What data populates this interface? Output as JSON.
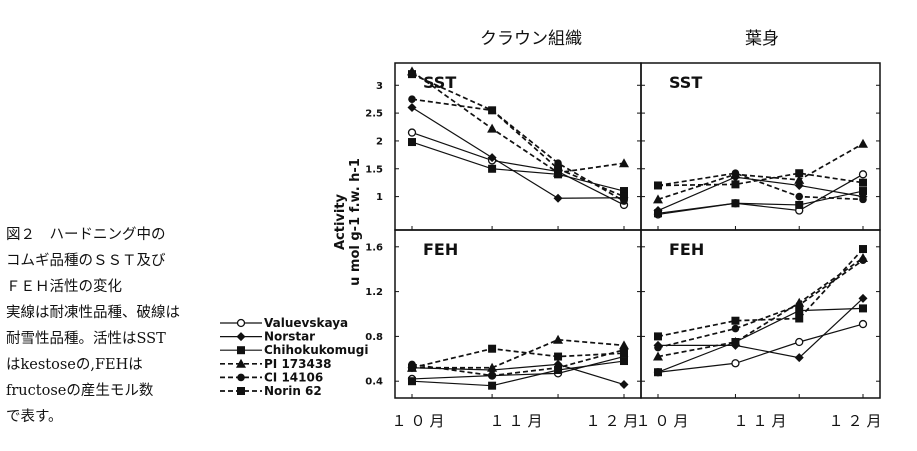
{
  "caption": {
    "lines": [
      "図２　ハードニング中の",
      "コムギ品種のＳＳＴ及び",
      "ＦＥＨ活性の変化",
      "実線は耐凍性品種、破線は",
      "耐雪性品種。活性はSST",
      "はkestoseの,FEHは",
      "fructoseの産生モル数",
      "で表す。"
    ]
  },
  "chart_data": {
    "type": "line",
    "column_titles": [
      "クラウン組織",
      "葉身"
    ],
    "ylabel": [
      "Activity",
      "u mol g-1 f.w. h-1"
    ],
    "x": [
      "10月",
      "11月",
      "12月"
    ],
    "x_tick_labels": [
      "１０月",
      "１１月",
      "１２月"
    ],
    "x_points": [
      0,
      0.85,
      1.55,
      2.25
    ],
    "legend": [
      {
        "name": "Valuevskaya",
        "marker": "circle-open",
        "dash": false
      },
      {
        "name": "Norstar",
        "marker": "diamond",
        "dash": false
      },
      {
        "name": "Chihokukomugi",
        "marker": "square",
        "dash": false
      },
      {
        "name": "PI 173438",
        "marker": "triangle",
        "dash": true
      },
      {
        "name": "CI 14106",
        "marker": "circle",
        "dash": true
      },
      {
        "name": "Norin 62",
        "marker": "square",
        "dash": true
      }
    ],
    "panels": [
      {
        "label": "SST",
        "tissue": "クラウン組織",
        "ylim": [
          0.4,
          3.4
        ],
        "yticks": [
          1,
          1.5,
          2,
          2.5,
          3
        ],
        "series": [
          {
            "name": "Valuevskaya",
            "values": [
              2.15,
              1.65,
              1.45,
              0.85
            ]
          },
          {
            "name": "Norstar",
            "values": [
              2.6,
              1.7,
              0.97,
              0.98
            ]
          },
          {
            "name": "Chihokukomugi",
            "values": [
              1.98,
              1.5,
              1.4,
              1.1
            ]
          },
          {
            "name": "PI 173438",
            "values": [
              3.25,
              2.22,
              1.43,
              1.6
            ]
          },
          {
            "name": "CI 14106",
            "values": [
              2.75,
              2.55,
              1.6,
              0.92
            ]
          },
          {
            "name": "Norin 62",
            "values": [
              3.2,
              2.55,
              1.5,
              1.0
            ]
          }
        ]
      },
      {
        "label": "SST",
        "tissue": "葉身",
        "ylim": [
          0.4,
          3.4
        ],
        "yticks": [
          1,
          1.5,
          2,
          2.5,
          3
        ],
        "series": [
          {
            "name": "Valuevskaya",
            "values": [
              0.68,
              0.88,
              0.75,
              1.4
            ]
          },
          {
            "name": "Norstar",
            "values": [
              0.75,
              1.35,
              1.2,
              1.0
            ]
          },
          {
            "name": "Chihokukomugi",
            "values": [
              0.7,
              0.88,
              0.85,
              1.1
            ]
          },
          {
            "name": "PI 173438",
            "values": [
              0.95,
              1.4,
              1.3,
              1.95
            ]
          },
          {
            "name": "CI 14106",
            "values": [
              1.2,
              1.42,
              1.0,
              0.95
            ]
          },
          {
            "name": "Norin 62",
            "values": [
              1.2,
              1.22,
              1.42,
              1.25
            ]
          }
        ]
      },
      {
        "label": "FEH",
        "tissue": "クラウン組織",
        "ylim": [
          0.25,
          1.75
        ],
        "yticks": [
          0.4,
          0.8,
          1.2,
          1.6
        ],
        "series": [
          {
            "name": "Valuevskaya",
            "values": [
              0.42,
              0.45,
              0.47,
              0.62
            ]
          },
          {
            "name": "Norstar",
            "values": [
              0.52,
              0.5,
              0.55,
              0.37
            ]
          },
          {
            "name": "Chihokukomugi",
            "values": [
              0.4,
              0.36,
              0.5,
              0.58
            ]
          },
          {
            "name": "PI 173438",
            "values": [
              0.52,
              0.52,
              0.77,
              0.72
            ]
          },
          {
            "name": "CI 14106",
            "values": [
              0.55,
              0.45,
              0.52,
              0.68
            ]
          },
          {
            "name": "Norin 62",
            "values": [
              0.52,
              0.69,
              0.62,
              0.65
            ]
          }
        ]
      },
      {
        "label": "FEH",
        "tissue": "葉身",
        "ylim": [
          0.25,
          1.75
        ],
        "yticks": [
          0.4,
          0.8,
          1.2,
          1.6
        ],
        "series": [
          {
            "name": "Valuevskaya",
            "values": [
              0.48,
              0.56,
              0.75,
              0.91
            ]
          },
          {
            "name": "Norstar",
            "values": [
              0.72,
              0.72,
              0.61,
              1.14
            ]
          },
          {
            "name": "Chihokukomugi",
            "values": [
              0.48,
              0.75,
              1.03,
              1.05
            ]
          },
          {
            "name": "PI 173438",
            "values": [
              0.62,
              0.75,
              1.1,
              1.5
            ]
          },
          {
            "name": "CI 14106",
            "values": [
              0.7,
              0.87,
              1.08,
              1.48
            ]
          },
          {
            "name": "Norin 62",
            "values": [
              0.8,
              0.94,
              0.96,
              1.58
            ]
          }
        ]
      }
    ]
  }
}
